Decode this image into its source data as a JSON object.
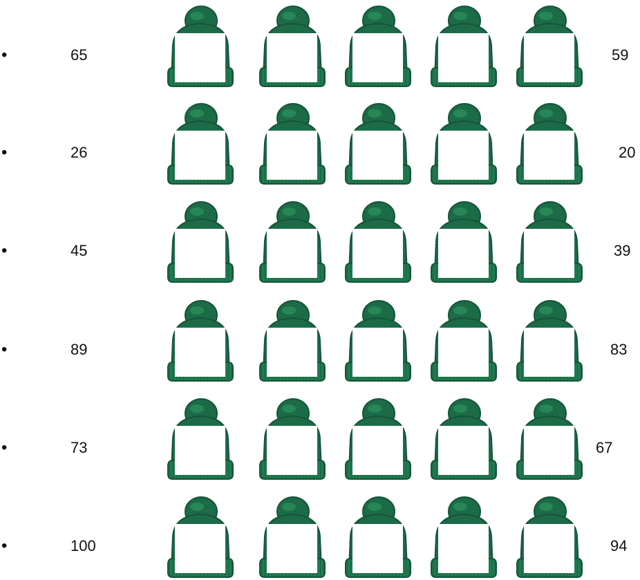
{
  "worksheet": {
    "rows": [
      {
        "bullet": "•",
        "start": "65",
        "end": "59"
      },
      {
        "bullet": "•",
        "start": "26",
        "end": "20"
      },
      {
        "bullet": "•",
        "start": "45",
        "end": "39"
      },
      {
        "bullet": "•",
        "start": "89",
        "end": "83"
      },
      {
        "bullet": "•",
        "start": "73",
        "end": "67"
      },
      {
        "bullet": "•",
        "start": "100",
        "end": "94"
      }
    ],
    "hat_icon": "knit-beanie-icon",
    "colors": {
      "hat_dark": "#16543a",
      "hat_mid": "#1f7a4f",
      "hat_light": "#2f9a62",
      "answer_box": "#ffffff"
    }
  }
}
